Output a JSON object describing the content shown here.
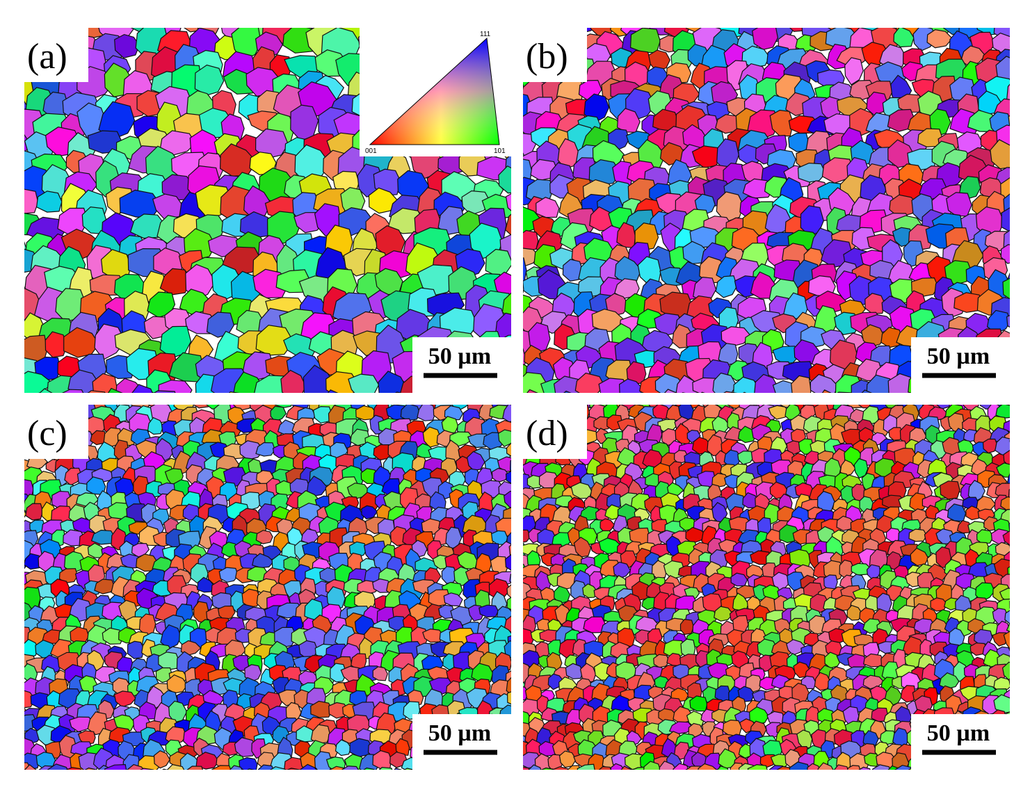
{
  "panels": [
    {
      "label": "(a)",
      "scale_bar": "50 µm"
    },
    {
      "label": "(b)",
      "scale_bar": "50 µm"
    },
    {
      "label": "(c)",
      "scale_bar": "50 µm"
    },
    {
      "label": "(d)",
      "scale_bar": "50 µm"
    }
  ],
  "legend": {
    "corner_111": "111",
    "corner_001": "001",
    "corner_101": "101"
  }
}
